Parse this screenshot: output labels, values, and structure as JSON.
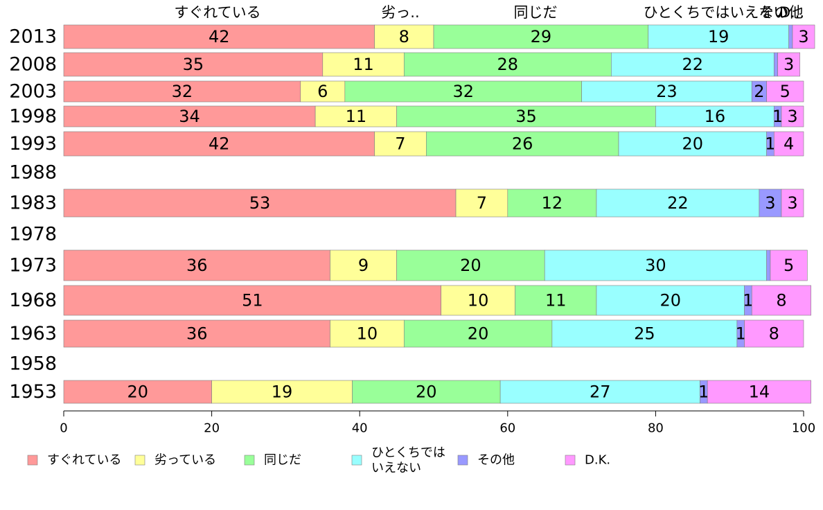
{
  "chart_data": {
    "type": "bar",
    "orientation": "horizontal",
    "stacked": true,
    "title": "",
    "xlabel": "",
    "ylabel": "",
    "xlim": [
      0,
      100
    ],
    "x_ticks": [
      0,
      20,
      40,
      60,
      80,
      100
    ],
    "grid": false,
    "legend_position": "bottom",
    "categories": [
      "2013",
      "2008",
      "2003",
      "1998",
      "1993",
      "1988",
      "1983",
      "1978",
      "1973",
      "1968",
      "1963",
      "1958",
      "1953"
    ],
    "series": [
      {
        "name": "すぐれている",
        "color": "#ff9999",
        "values": [
          42,
          35,
          32,
          34,
          42,
          null,
          53,
          null,
          36,
          51,
          36,
          null,
          20
        ]
      },
      {
        "name": "劣っている",
        "color": "#ffff99",
        "values": [
          8,
          11,
          6,
          11,
          7,
          null,
          7,
          null,
          9,
          10,
          10,
          null,
          19
        ]
      },
      {
        "name": "同じだ",
        "color": "#99ff99",
        "values": [
          29,
          28,
          32,
          35,
          26,
          null,
          12,
          null,
          20,
          11,
          20,
          null,
          20
        ]
      },
      {
        "name": "ひとくちでは いえない",
        "color": "#99ffff",
        "values": [
          19,
          22,
          23,
          16,
          20,
          null,
          22,
          null,
          30,
          20,
          25,
          null,
          27
        ]
      },
      {
        "name": "その他",
        "color": "#9999ff",
        "values": [
          0.5,
          0.5,
          2,
          1,
          1,
          null,
          3,
          null,
          0.5,
          1,
          1,
          null,
          1
        ]
      },
      {
        "name": "D.K.",
        "color": "#ff99ff",
        "values": [
          3,
          3,
          5,
          3,
          4,
          null,
          3,
          null,
          5,
          8,
          8,
          null,
          14
        ]
      }
    ],
    "segment_labels": [
      [
        "42",
        "8",
        "29",
        "19",
        "",
        "3"
      ],
      [
        "35",
        "11",
        "28",
        "22",
        "",
        "3"
      ],
      [
        "32",
        "6",
        "32",
        "23",
        "2",
        "5"
      ],
      [
        "34",
        "11",
        "35",
        "16",
        "1",
        "3"
      ],
      [
        "42",
        "7",
        "26",
        "20",
        "1",
        "4"
      ],
      [
        "",
        "",
        "",
        "",
        "",
        ""
      ],
      [
        "53",
        "7",
        "12",
        "22",
        "3",
        "3"
      ],
      [
        "",
        "",
        "",
        "",
        "",
        ""
      ],
      [
        "36",
        "9",
        "20",
        "30",
        "",
        "5"
      ],
      [
        "51",
        "10",
        "11",
        "20",
        "1",
        "8"
      ],
      [
        "36",
        "10",
        "20",
        "25",
        "1",
        "8"
      ],
      [
        "",
        "",
        "",
        "",
        "",
        ""
      ],
      [
        "20",
        "19",
        "20",
        "27",
        "1",
        "14"
      ]
    ],
    "top_labels": [
      "すぐれている",
      "劣っ..",
      "同じだ",
      "ひとくちではいえない",
      "その他",
      "D..."
    ]
  }
}
